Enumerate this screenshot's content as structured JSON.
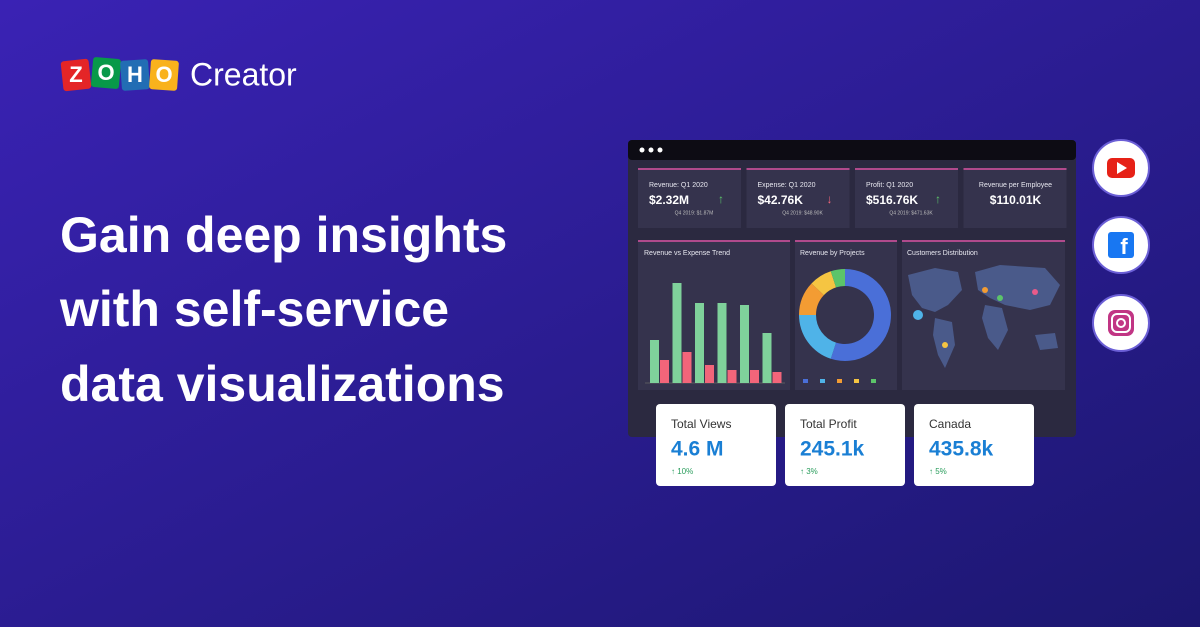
{
  "brand": {
    "logo_letters": [
      "Z",
      "O",
      "H",
      "O"
    ],
    "product": "Creator"
  },
  "headline": [
    "Gain deep insights",
    "with self-service",
    "data visualizations"
  ],
  "dashboard": {
    "kpis": [
      {
        "label": "Revenue: Q1 2020",
        "value": "$2.32M",
        "trend": "↑",
        "previous": "Q4 2019: $1.87M"
      },
      {
        "label": "Expense: Q1 2020",
        "value": "$42.76K",
        "trend": "↓",
        "previous": "Q4 2019: $48.90K"
      },
      {
        "label": "Profit: Q1 2020",
        "value": "$516.76K",
        "trend": "↑",
        "previous": "Q4 2019: $471.63K"
      },
      {
        "label": "Revenue per Employee",
        "value": "$110.01K"
      }
    ],
    "bar_chart": {
      "type": "bar",
      "title": "Revenue vs Expense Trend",
      "ylim": [
        0,
        110
      ],
      "series": [
        {
          "color": "#7fd19b",
          "values": [
            43,
            100,
            80,
            80,
            78,
            50
          ]
        },
        {
          "color": "#f2657a",
          "values": [
            23,
            31,
            18,
            13,
            13,
            11
          ]
        }
      ]
    },
    "donut_chart": {
      "type": "pie",
      "title": "Revenue by Projects",
      "values": [
        55,
        20,
        12,
        8,
        5
      ],
      "colors": [
        "#4a6fd8",
        "#4fb3e8",
        "#f39c33",
        "#f5c542",
        "#5cc46a"
      ]
    },
    "map": {
      "title": "Customers Distribution"
    }
  },
  "cards": [
    {
      "label": "Total Views",
      "value": "4.6 M",
      "change": "↑ 10%"
    },
    {
      "label": "Total Profit",
      "value": "245.1k",
      "change": "↑ 3%"
    },
    {
      "label": "Canada",
      "value": "435.8k",
      "change": "↑ 5%"
    }
  ]
}
